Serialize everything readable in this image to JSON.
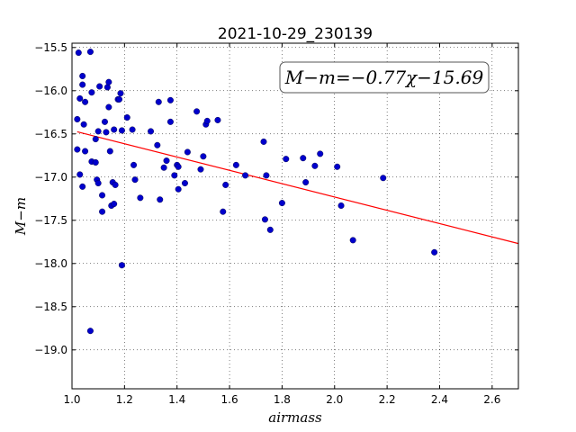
{
  "chart_data": {
    "type": "scatter",
    "title": "2021-10-29_230139",
    "xlabel": "airmass",
    "ylabel": "M−m",
    "annotation": "M−m=−0.77χ−15.69",
    "xlim": [
      1.0,
      2.7
    ],
    "ylim": [
      -19.45,
      -15.45
    ],
    "y_inverted": true,
    "xticks": [
      1.0,
      1.2,
      1.4,
      1.6,
      1.8,
      2.0,
      2.2,
      2.4,
      2.6
    ],
    "xtick_labels": [
      "1.0",
      "1.2",
      "1.4",
      "1.6",
      "1.8",
      "2.0",
      "2.2",
      "2.4",
      "2.6"
    ],
    "yticks": [
      -15.5,
      -16.0,
      -16.5,
      -17.0,
      -17.5,
      -18.0,
      -18.5,
      -19.0
    ],
    "ytick_labels": [
      "−15.5",
      "−16.0",
      "−16.5",
      "−17.0",
      "−17.5",
      "−18.0",
      "−18.5",
      "−19.0"
    ],
    "grid": true,
    "point_color": "#0000cc",
    "line_color": "#ff0000",
    "fit": {
      "slope": -0.77,
      "intercept": -15.69
    },
    "points": [
      [
        1.02,
        -16.68
      ],
      [
        1.02,
        -16.33
      ],
      [
        1.025,
        -15.56
      ],
      [
        1.03,
        -16.09
      ],
      [
        1.03,
        -16.97
      ],
      [
        1.04,
        -15.83
      ],
      [
        1.04,
        -15.93
      ],
      [
        1.04,
        -17.11
      ],
      [
        1.045,
        -16.39
      ],
      [
        1.05,
        -16.13
      ],
      [
        1.05,
        -16.7
      ],
      [
        1.07,
        -15.55
      ],
      [
        1.07,
        -18.78
      ],
      [
        1.075,
        -16.02
      ],
      [
        1.075,
        -16.82
      ],
      [
        1.09,
        -16.56
      ],
      [
        1.09,
        -16.83
      ],
      [
        1.095,
        -17.03
      ],
      [
        1.1,
        -16.47
      ],
      [
        1.1,
        -17.07
      ],
      [
        1.105,
        -15.95
      ],
      [
        1.115,
        -17.21
      ],
      [
        1.115,
        -17.4
      ],
      [
        1.125,
        -16.36
      ],
      [
        1.13,
        -16.48
      ],
      [
        1.135,
        -15.96
      ],
      [
        1.14,
        -15.9
      ],
      [
        1.14,
        -16.19
      ],
      [
        1.145,
        -16.7
      ],
      [
        1.15,
        -17.33
      ],
      [
        1.155,
        -17.06
      ],
      [
        1.16,
        -16.45
      ],
      [
        1.16,
        -17.31
      ],
      [
        1.165,
        -17.09
      ],
      [
        1.175,
        -16.1
      ],
      [
        1.18,
        -16.1
      ],
      [
        1.185,
        -16.03
      ],
      [
        1.19,
        -16.46
      ],
      [
        1.19,
        -18.02
      ],
      [
        1.21,
        -16.31
      ],
      [
        1.23,
        -16.45
      ],
      [
        1.235,
        -16.86
      ],
      [
        1.24,
        -17.03
      ],
      [
        1.26,
        -17.24
      ],
      [
        1.3,
        -16.47
      ],
      [
        1.325,
        -16.63
      ],
      [
        1.33,
        -16.13
      ],
      [
        1.335,
        -17.26
      ],
      [
        1.35,
        -16.89
      ],
      [
        1.36,
        -16.81
      ],
      [
        1.375,
        -16.36
      ],
      [
        1.375,
        -16.11
      ],
      [
        1.39,
        -16.98
      ],
      [
        1.4,
        -16.86
      ],
      [
        1.405,
        -16.88
      ],
      [
        1.405,
        -17.14
      ],
      [
        1.43,
        -17.07
      ],
      [
        1.44,
        -16.71
      ],
      [
        1.475,
        -16.24
      ],
      [
        1.49,
        -16.91
      ],
      [
        1.5,
        -16.76
      ],
      [
        1.51,
        -16.39
      ],
      [
        1.515,
        -16.35
      ],
      [
        1.555,
        -16.34
      ],
      [
        1.575,
        -17.4
      ],
      [
        1.585,
        -17.09
      ],
      [
        1.625,
        -16.86
      ],
      [
        1.66,
        -16.98
      ],
      [
        1.73,
        -16.59
      ],
      [
        1.735,
        -17.49
      ],
      [
        1.74,
        -16.98
      ],
      [
        1.755,
        -17.61
      ],
      [
        1.8,
        -17.3
      ],
      [
        1.815,
        -16.79
      ],
      [
        1.88,
        -16.78
      ],
      [
        1.89,
        -17.06
      ],
      [
        1.925,
        -16.87
      ],
      [
        1.945,
        -16.73
      ],
      [
        2.01,
        -16.88
      ],
      [
        2.025,
        -17.33
      ],
      [
        2.07,
        -17.73
      ],
      [
        2.185,
        -17.01
      ],
      [
        2.38,
        -17.87
      ]
    ]
  }
}
